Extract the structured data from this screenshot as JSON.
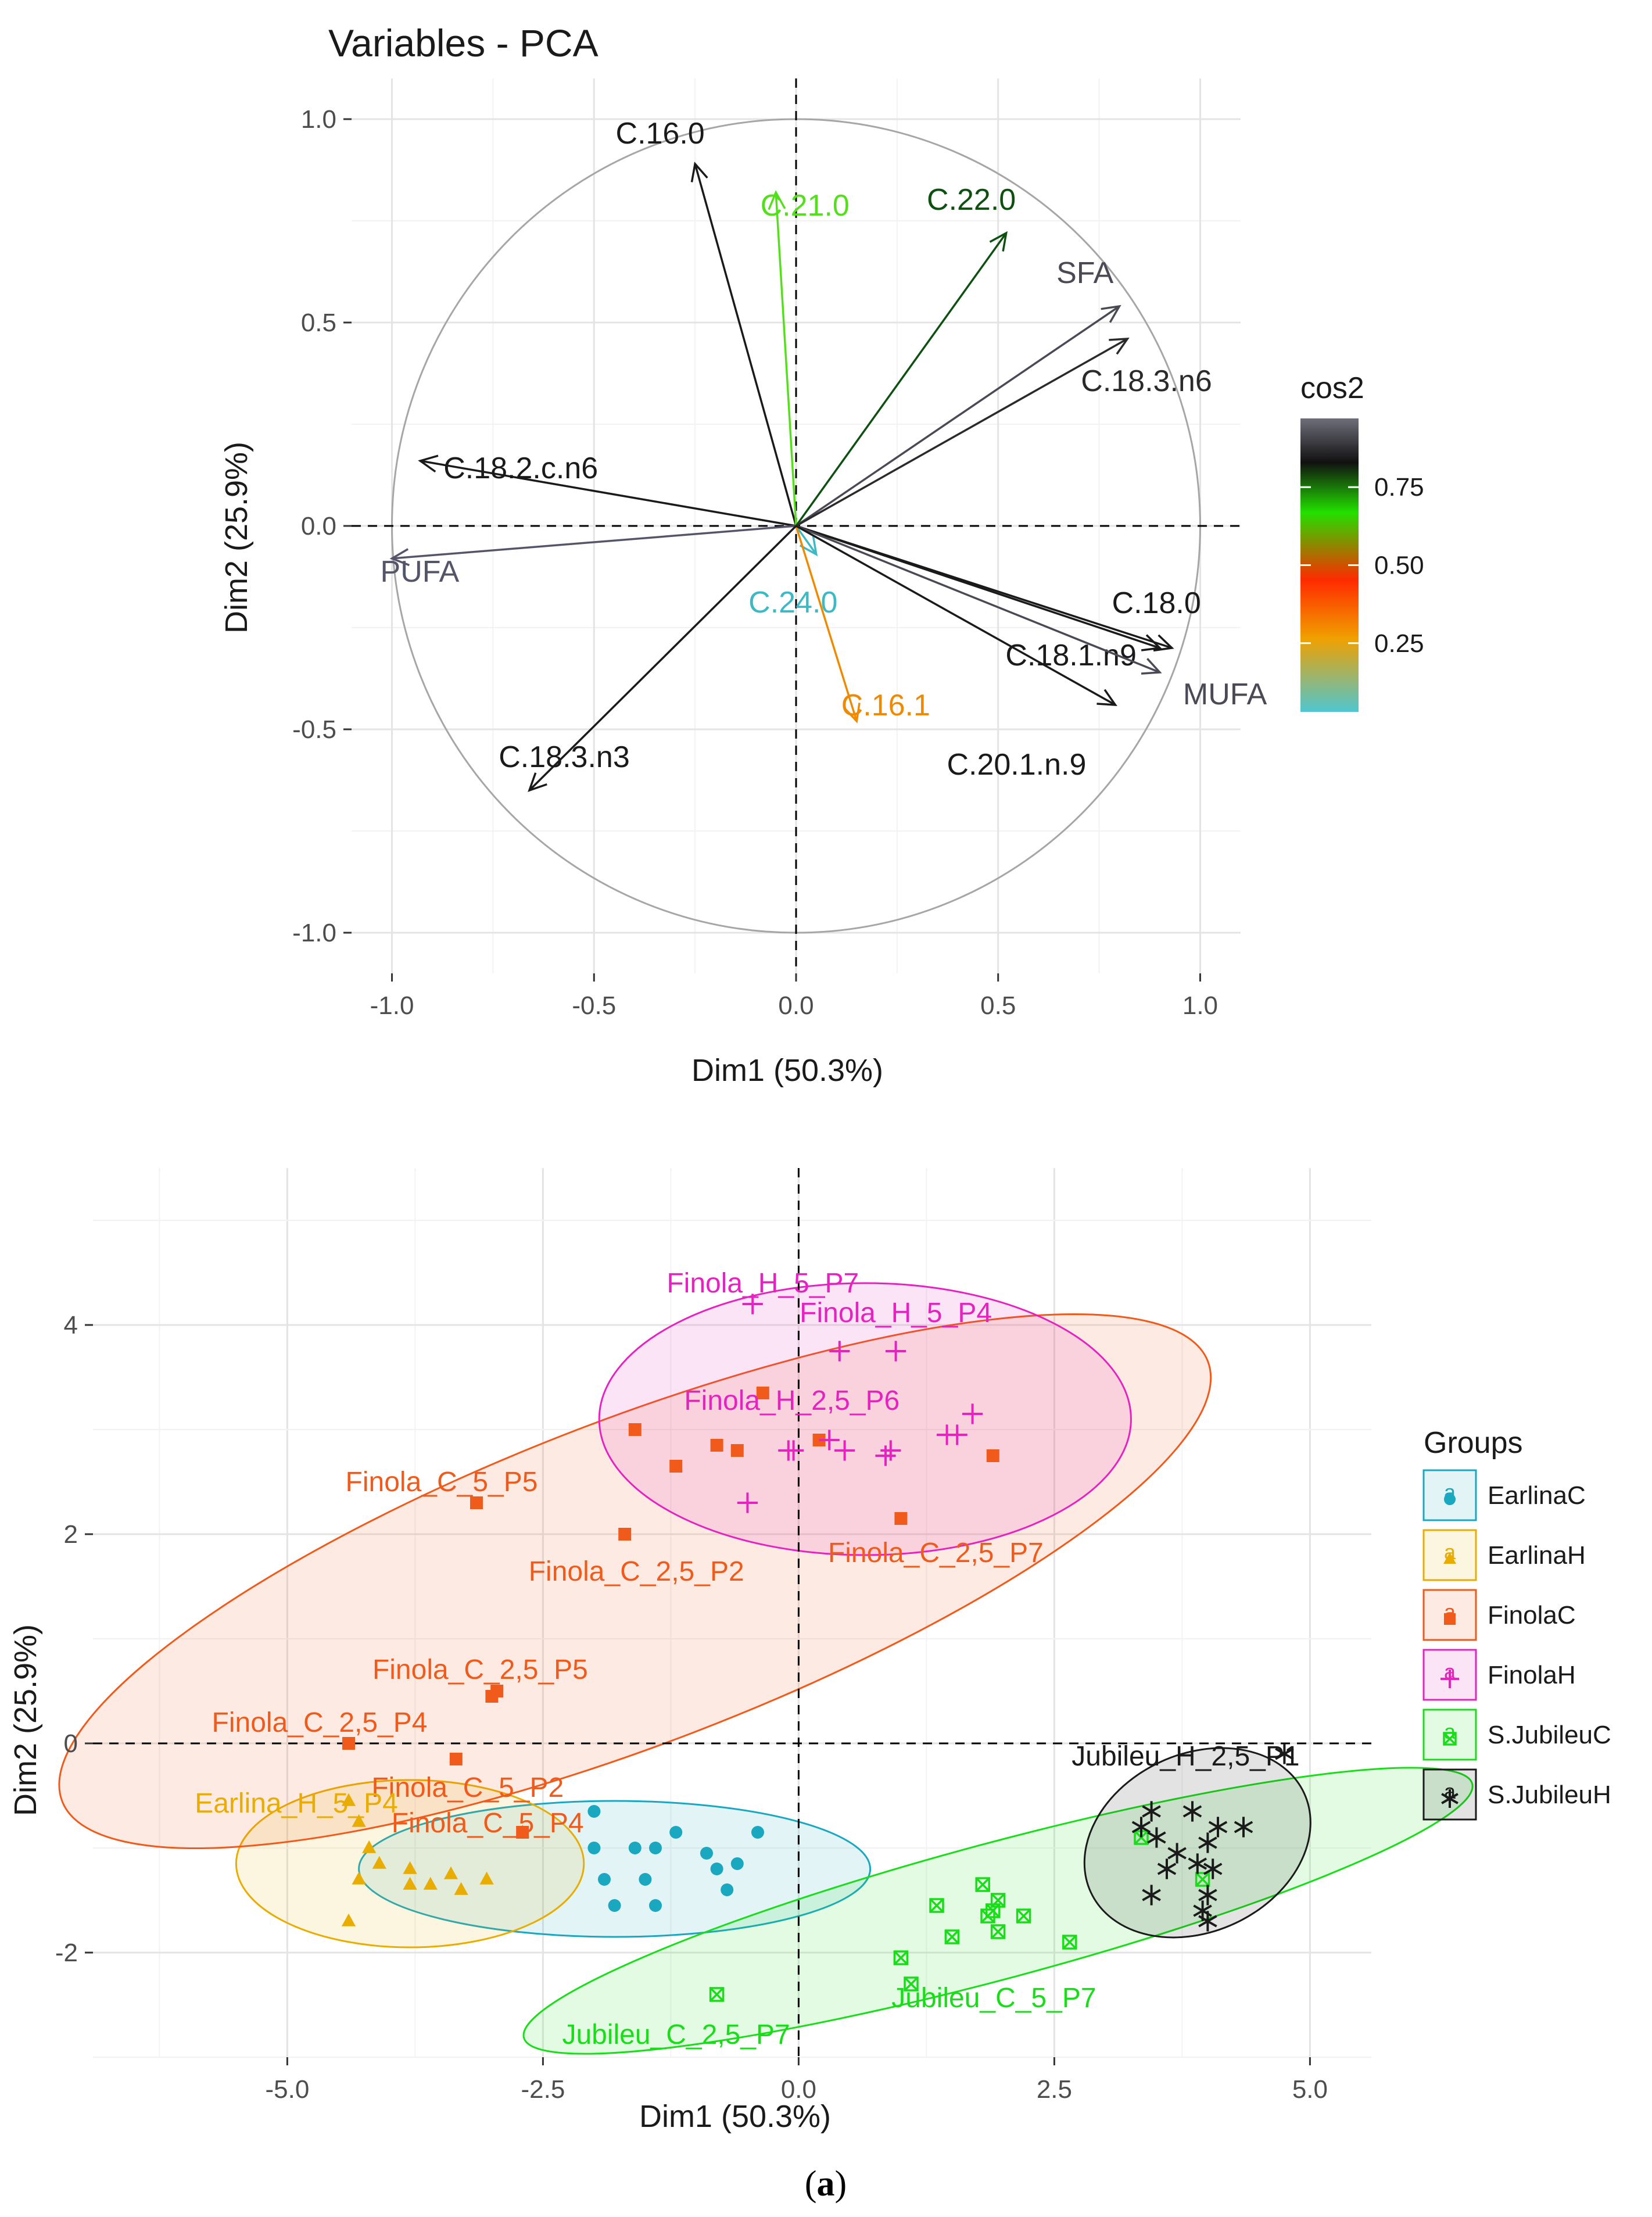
{
  "chart_data": [
    {
      "type": "scatter",
      "subtype": "pca-variables",
      "title": "Variables - PCA",
      "xlabel": "Dim1 (50.3%)",
      "ylabel": "Dim2 (25.9%)",
      "xlim": [
        -1.1,
        1.1
      ],
      "ylim": [
        -1.1,
        1.1
      ],
      "xticks": [
        -1.0,
        -0.5,
        0.0,
        0.5,
        1.0
      ],
      "xtick_labels": [
        "-1.0",
        "-0.5",
        "0.0",
        "0.5",
        "1.0"
      ],
      "yticks": [
        -1.0,
        -0.5,
        0.0,
        0.5,
        1.0
      ],
      "ytick_labels": [
        "-1.0",
        "-0.5",
        "0.0",
        "0.5",
        "1.0"
      ],
      "grid": true,
      "legend": {
        "title": "cos2",
        "position": "right",
        "ticks": [
          0.25,
          0.5,
          0.75
        ],
        "tick_labels": [
          "0.25",
          "0.50",
          "0.75"
        ],
        "colors": [
          "#4fc6d0",
          "#f0a000",
          "#ff2a00",
          "#22e000",
          "#111111",
          "#6e6e7a"
        ]
      },
      "vectors": [
        {
          "name": "C.16.0",
          "x": -0.25,
          "y": 0.89,
          "color": "#1a1a1a"
        },
        {
          "name": "C.21.0",
          "x": -0.05,
          "y": 0.82,
          "color": "#53e01a"
        },
        {
          "name": "C.22.0",
          "x": 0.52,
          "y": 0.72,
          "color": "#0e5010"
        },
        {
          "name": "SFA",
          "x": 0.8,
          "y": 0.54,
          "color": "#4a4a55"
        },
        {
          "name": "C.18.3.n6",
          "x": 0.82,
          "y": 0.46,
          "color": "#2a2a2a"
        },
        {
          "name": "C.18.2.c.n6",
          "x": -0.93,
          "y": 0.16,
          "color": "#1a1a1a"
        },
        {
          "name": "PUFA",
          "x": -1.0,
          "y": -0.08,
          "color": "#55556a"
        },
        {
          "name": "C.24.0",
          "x": 0.05,
          "y": -0.07,
          "color": "#3bbac5"
        },
        {
          "name": "C.16.1",
          "x": 0.15,
          "y": -0.48,
          "color": "#ef8a00"
        },
        {
          "name": "C.18.0",
          "x": 0.93,
          "y": -0.3,
          "color": "#1a1a1a"
        },
        {
          "name": "C.18.1.n9",
          "x": 0.9,
          "y": -0.3,
          "color": "#1a1a1a"
        },
        {
          "name": "MUFA",
          "x": 0.9,
          "y": -0.36,
          "color": "#4a4a55"
        },
        {
          "name": "C.20.1.n.9",
          "x": 0.79,
          "y": -0.44,
          "color": "#1a1a1a"
        },
        {
          "name": "C.18.3.n3",
          "x": -0.66,
          "y": -0.65,
          "color": "#1a1a1a"
        }
      ]
    },
    {
      "type": "scatter",
      "subtype": "pca-individuals",
      "xlabel": "Dim1 (50.3%)",
      "ylabel": "Dim2 (25.9%)",
      "xlim": [
        -6.9,
        5.6
      ],
      "ylim": [
        -3.0,
        5.5
      ],
      "xticks": [
        -5.0,
        -2.5,
        0.0,
        2.5,
        5.0
      ],
      "xtick_labels": [
        "-5.0",
        "-2.5",
        "0.0",
        "2.5",
        "5.0"
      ],
      "yticks": [
        -2,
        0,
        2,
        4
      ],
      "ytick_labels": [
        "-2",
        "0",
        "2",
        "4"
      ],
      "grid": true,
      "legend": {
        "title": "Groups",
        "position": "right",
        "glyph_letter": "a"
      },
      "groups": [
        {
          "name": "EarlinaC",
          "color": "#1aa8c0",
          "marker": "circle",
          "ellipse": {
            "cx": -1.8,
            "cy": -1.2,
            "rx": 2.5,
            "ry": 0.65,
            "angle": 0
          },
          "points": [
            [
              -2.0,
              -0.65
            ],
            [
              -2.0,
              -1.0
            ],
            [
              -1.9,
              -1.3
            ],
            [
              -1.8,
              -1.55
            ],
            [
              -1.6,
              -1.0
            ],
            [
              -1.5,
              -1.3
            ],
            [
              -1.4,
              -1.55
            ],
            [
              -1.2,
              -0.85
            ],
            [
              -1.4,
              -1.0
            ],
            [
              -0.8,
              -1.2
            ],
            [
              -0.7,
              -1.4
            ],
            [
              -0.6,
              -1.15
            ],
            [
              -0.4,
              -0.85
            ],
            [
              -0.9,
              -1.05
            ]
          ]
        },
        {
          "name": "EarlinaH",
          "color": "#e8ad00",
          "marker": "triangle",
          "ellipse": {
            "cx": -3.8,
            "cy": -1.15,
            "rx": 1.7,
            "ry": 0.8,
            "angle": 0
          },
          "points": [
            [
              -4.4,
              -0.55
            ],
            [
              -4.3,
              -0.75
            ],
            [
              -4.2,
              -1.0
            ],
            [
              -4.1,
              -1.15
            ],
            [
              -4.3,
              -1.3
            ],
            [
              -4.4,
              -1.7
            ],
            [
              -3.8,
              -1.2
            ],
            [
              -3.6,
              -1.35
            ],
            [
              -3.4,
              -1.25
            ],
            [
              -3.3,
              -1.4
            ],
            [
              -3.05,
              -1.3
            ],
            [
              -2.7,
              -0.85
            ],
            [
              -3.8,
              -1.35
            ]
          ]
        },
        {
          "name": "FinolaC",
          "color": "#f05a1a",
          "marker": "square",
          "ellipse": {
            "cx": -1.6,
            "cy": 1.55,
            "rx": 6.0,
            "ry": 1.55,
            "angle": 21
          },
          "points": [
            [
              -3.15,
              2.3
            ],
            [
              -1.6,
              3.0
            ],
            [
              -1.2,
              2.65
            ],
            [
              -0.8,
              2.85
            ],
            [
              -0.6,
              2.8
            ],
            [
              -0.35,
              3.35
            ],
            [
              0.2,
              2.9
            ],
            [
              1.0,
              2.15
            ],
            [
              1.9,
              2.75
            ],
            [
              -1.7,
              2.0
            ],
            [
              -3.0,
              0.45
            ],
            [
              -2.95,
              0.5
            ],
            [
              -3.35,
              -0.15
            ],
            [
              -4.4,
              0.0
            ],
            [
              -2.7,
              -0.85
            ]
          ]
        },
        {
          "name": "FinolaH",
          "color": "#e622c0",
          "marker": "plus",
          "ellipse": {
            "cx": 0.65,
            "cy": 3.1,
            "rx": 2.6,
            "ry": 1.3,
            "angle": 0
          },
          "points": [
            [
              -0.45,
              4.2
            ],
            [
              0.4,
              3.75
            ],
            [
              0.95,
              3.75
            ],
            [
              -0.5,
              2.3
            ],
            [
              -0.05,
              2.8
            ],
            [
              0.45,
              2.8
            ],
            [
              0.85,
              2.75
            ],
            [
              0.9,
              2.8
            ],
            [
              1.45,
              2.95
            ],
            [
              1.55,
              2.95
            ],
            [
              1.7,
              3.15
            ],
            [
              -0.1,
              2.8
            ],
            [
              0.3,
              2.9
            ]
          ]
        },
        {
          "name": "S.JubileuC",
          "color": "#1add1a",
          "marker": "square-x",
          "ellipse": {
            "cx": 1.95,
            "cy": -1.6,
            "rx": 4.8,
            "ry": 0.65,
            "angle": 15
          },
          "points": [
            [
              -0.8,
              -2.4
            ],
            [
              1.0,
              -2.05
            ],
            [
              1.1,
              -2.3
            ],
            [
              1.35,
              -1.55
            ],
            [
              1.5,
              -1.85
            ],
            [
              1.8,
              -1.35
            ],
            [
              1.85,
              -1.65
            ],
            [
              1.9,
              -1.6
            ],
            [
              1.95,
              -1.8
            ],
            [
              2.2,
              -1.65
            ],
            [
              2.65,
              -1.9
            ],
            [
              3.35,
              -0.9
            ],
            [
              3.95,
              -1.3
            ],
            [
              1.95,
              -1.5
            ]
          ]
        },
        {
          "name": "S.JubileuH",
          "color": "#1a1a1a",
          "marker": "asterisk",
          "ellipse": {
            "cx": 3.9,
            "cy": -0.95,
            "rx": 1.15,
            "ry": 0.85,
            "angle": 25
          },
          "points": [
            [
              3.35,
              -0.8
            ],
            [
              3.45,
              -0.65
            ],
            [
              3.5,
              -0.9
            ],
            [
              3.6,
              -1.2
            ],
            [
              3.7,
              -1.05
            ],
            [
              3.85,
              -0.65
            ],
            [
              3.9,
              -1.15
            ],
            [
              4.0,
              -0.95
            ],
            [
              4.05,
              -1.2
            ],
            [
              4.1,
              -0.8
            ],
            [
              4.35,
              -0.8
            ],
            [
              4.75,
              -0.1
            ],
            [
              3.45,
              -1.45
            ],
            [
              4.0,
              -1.45
            ],
            [
              3.95,
              -1.6
            ],
            [
              4.0,
              -1.7
            ]
          ]
        }
      ],
      "labels": [
        {
          "text": "Finola_H_5_P7",
          "x": -0.35,
          "y": 4.2,
          "group": "FinolaH"
        },
        {
          "text": "Finola_H_5_P4",
          "x": 0.95,
          "y": 3.75,
          "group": "FinolaH"
        },
        {
          "text": "Finola_H_2,5_P6",
          "x": -0.35,
          "y": 3.3,
          "group": "FinolaH"
        },
        {
          "text": "Finola_C_5_P5",
          "x": -3.15,
          "y": 2.3,
          "group": "FinolaC"
        },
        {
          "text": "Finola_C_2,5_P2",
          "x": -1.7,
          "y": 2.0,
          "group": "FinolaC"
        },
        {
          "text": "Finola_C_2,5_P7",
          "x": 1.0,
          "y": 2.15,
          "group": "FinolaC"
        },
        {
          "text": "Finola_C_2,5_P5",
          "x": -3.0,
          "y": 0.45,
          "group": "FinolaC"
        },
        {
          "text": "Finola_C_2,5_P4",
          "x": -4.4,
          "y": 0.0,
          "group": "FinolaC"
        },
        {
          "text": "Finola_C_5_P2",
          "x": -3.35,
          "y": -0.15,
          "group": "FinolaC"
        },
        {
          "text": "Finola_C_5_P4",
          "x": -2.7,
          "y": -0.85,
          "group": "FinolaC"
        },
        {
          "text": "Earlina_H_5_P4",
          "x": -4.4,
          "y": -0.55,
          "group": "EarlinaH"
        },
        {
          "text": "Jubileu_H_2,5_P1",
          "x": 4.75,
          "y": -0.1,
          "group": "S.JubileuH"
        },
        {
          "text": "Jubileu_C_2,5_P7",
          "x": -0.8,
          "y": -2.4,
          "group": "S.JubileuC"
        },
        {
          "text": "Jubileu_C_5_P7",
          "x": 1.0,
          "y": -2.3,
          "group": "S.JubileuC"
        }
      ]
    }
  ],
  "caption": {
    "open": "(",
    "letter": "a",
    "close": ")"
  }
}
